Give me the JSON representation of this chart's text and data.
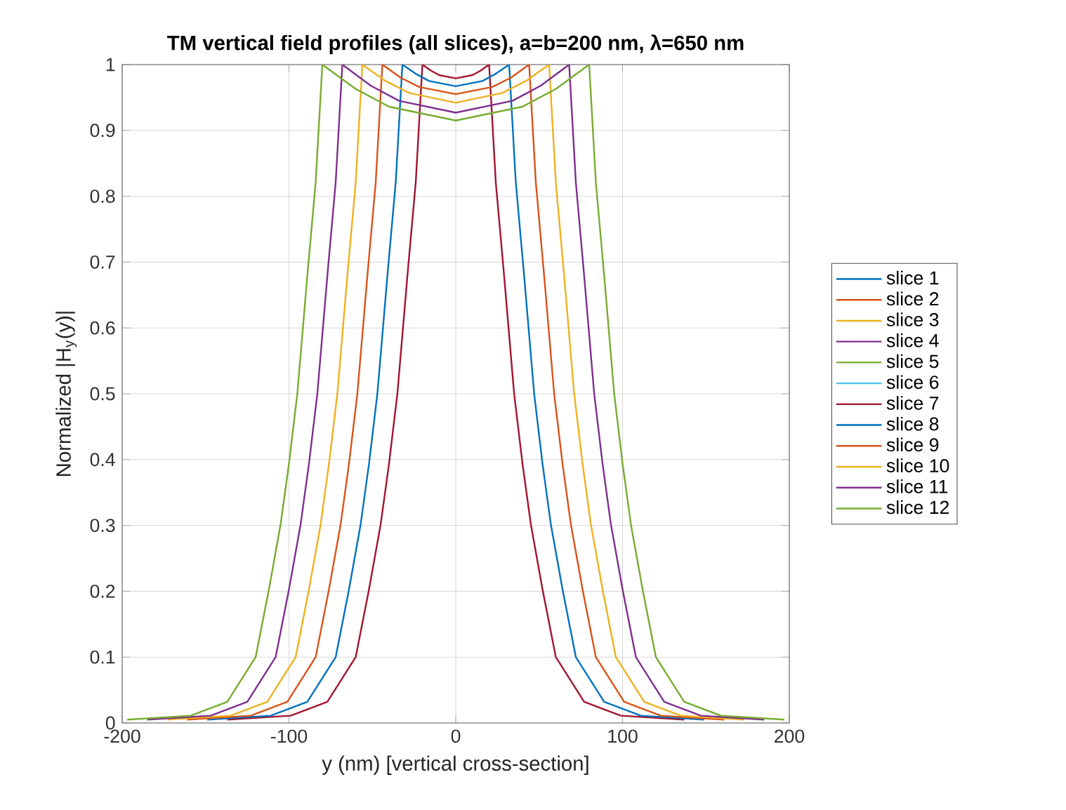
{
  "chart_data": {
    "type": "line",
    "title": "TM vertical field profiles (all slices), a=b=200 nm, λ=650 nm",
    "xlabel": "y (nm)  [vertical cross-section]",
    "ylabel": "Normalized |H$_{y}$(y)|",
    "xlim": [
      -200,
      200
    ],
    "xticks": [
      -200,
      -100,
      0,
      100,
      200
    ],
    "ylim": [
      0,
      1
    ],
    "yticks": [
      0,
      0.1,
      0.2,
      0.3,
      0.4,
      0.5,
      0.6,
      0.7,
      0.8,
      0.9,
      1
    ],
    "grid": true,
    "legend": "right",
    "marker": "none",
    "line_style": "solid",
    "series": [
      {
        "name": "slice 1",
        "color": "#0072bd",
        "values": [
          null
        ]
      },
      {
        "name": "slice 2",
        "color": "#d95319",
        "values": [
          null
        ]
      },
      {
        "name": "slice 3",
        "color": "#edb120",
        "values": [
          null
        ]
      },
      {
        "name": "slice 4",
        "color": "#7e2f8e",
        "values": [
          null
        ]
      },
      {
        "name": "slice 5",
        "color": "#77ac30",
        "values": [
          null
        ]
      },
      {
        "name": "slice 6",
        "color": "#4dbeee",
        "values": [
          null
        ]
      },
      {
        "name": "slice 7",
        "color": "#a2142f",
        "x": [
          -137,
          -99,
          -77,
          -60,
          -52,
          -45,
          -40,
          -35,
          -29,
          -24,
          -20,
          -15,
          -10,
          0,
          10,
          15,
          20,
          24,
          29,
          35,
          40,
          45,
          52,
          60,
          77,
          99,
          137
        ],
        "values": [
          0.005,
          0.011,
          0.032,
          0.1,
          0.203,
          0.302,
          0.394,
          0.5,
          0.679,
          0.821,
          1,
          0.991,
          0.984,
          0.979,
          0.984,
          0.991,
          1,
          0.821,
          0.679,
          0.5,
          0.394,
          0.302,
          0.203,
          0.1,
          0.032,
          0.011,
          0.005
        ]
      },
      {
        "name": "slice 8",
        "color": "#0072bd",
        "x": [
          -149,
          -111,
          -89,
          -72,
          -64,
          -57,
          -52,
          -47,
          -41,
          -36,
          -32,
          -24,
          -16,
          0,
          16,
          24,
          32,
          36,
          41,
          47,
          52,
          57,
          64,
          72,
          89,
          111,
          149
        ],
        "values": [
          0.005,
          0.011,
          0.032,
          0.1,
          0.203,
          0.302,
          0.394,
          0.5,
          0.679,
          0.821,
          1,
          0.986,
          0.975,
          0.967,
          0.975,
          0.986,
          1,
          0.821,
          0.679,
          0.5,
          0.394,
          0.302,
          0.203,
          0.1,
          0.032,
          0.011,
          0.005
        ]
      },
      {
        "name": "slice 9",
        "color": "#d95319",
        "x": [
          -161,
          -123,
          -101,
          -84,
          -76,
          -69,
          -64,
          -59,
          -53,
          -48,
          -44,
          -33,
          -22,
          0,
          22,
          33,
          44,
          48,
          53,
          59,
          64,
          69,
          76,
          84,
          101,
          123,
          161
        ],
        "values": [
          0.005,
          0.011,
          0.032,
          0.1,
          0.203,
          0.302,
          0.394,
          0.5,
          0.679,
          0.821,
          1,
          0.98,
          0.966,
          0.955,
          0.966,
          0.98,
          1,
          0.821,
          0.679,
          0.5,
          0.394,
          0.302,
          0.203,
          0.1,
          0.032,
          0.011,
          0.005
        ]
      },
      {
        "name": "slice 10",
        "color": "#edb120",
        "x": [
          -173,
          -135,
          -113,
          -96,
          -88,
          -81,
          -76,
          -71,
          -65,
          -60,
          -56,
          -42,
          -28,
          0,
          28,
          42,
          56,
          60,
          65,
          71,
          76,
          81,
          88,
          96,
          113,
          135,
          173
        ],
        "values": [
          0.005,
          0.011,
          0.032,
          0.1,
          0.203,
          0.302,
          0.394,
          0.5,
          0.679,
          0.821,
          1,
          0.975,
          0.957,
          0.942,
          0.957,
          0.975,
          1,
          0.821,
          0.679,
          0.5,
          0.394,
          0.302,
          0.203,
          0.1,
          0.032,
          0.011,
          0.005
        ]
      },
      {
        "name": "slice 11",
        "color": "#7e2f8e",
        "x": [
          -185,
          -147,
          -125,
          -108,
          -100,
          -93,
          -88,
          -83,
          -77,
          -72,
          -68,
          -51,
          -34,
          0,
          34,
          51,
          68,
          72,
          77,
          83,
          88,
          93,
          100,
          108,
          125,
          147,
          185
        ],
        "values": [
          0.005,
          0.011,
          0.032,
          0.1,
          0.203,
          0.302,
          0.394,
          0.5,
          0.679,
          0.821,
          1,
          0.968,
          0.945,
          0.927,
          0.945,
          0.968,
          1,
          0.821,
          0.679,
          0.5,
          0.394,
          0.302,
          0.203,
          0.1,
          0.032,
          0.011,
          0.005
        ]
      },
      {
        "name": "slice 12",
        "color": "#77ac30",
        "x": [
          -197,
          -159,
          -137,
          -120,
          -112,
          -105,
          -100,
          -95,
          -89,
          -84,
          -80,
          -60,
          -40,
          0,
          40,
          60,
          80,
          84,
          89,
          95,
          100,
          105,
          112,
          120,
          137,
          159,
          197
        ],
        "values": [
          0.005,
          0.011,
          0.032,
          0.1,
          0.203,
          0.302,
          0.394,
          0.5,
          0.679,
          0.821,
          1,
          0.963,
          0.936,
          0.915,
          0.936,
          0.963,
          1,
          0.821,
          0.679,
          0.5,
          0.394,
          0.302,
          0.203,
          0.1,
          0.032,
          0.011,
          0.005
        ]
      }
    ]
  }
}
